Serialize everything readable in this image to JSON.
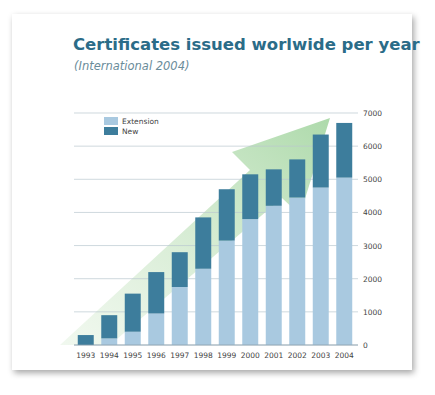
{
  "chart_data": {
    "type": "bar",
    "stacked": true,
    "title": "Certificates issued worlwide per year",
    "subtitle": "(International 2004)",
    "categories": [
      "1993",
      "1994",
      "1995",
      "1996",
      "1997",
      "1998",
      "1999",
      "2000",
      "2001",
      "2002",
      "2003",
      "2004"
    ],
    "series": [
      {
        "name": "Extension",
        "color": "#a9c9e0",
        "values": [
          0,
          200,
          400,
          950,
          1750,
          2300,
          3150,
          3800,
          4200,
          4450,
          4750,
          5050
        ]
      },
      {
        "name": "New",
        "color": "#3d7d9c",
        "values": [
          300,
          700,
          1150,
          1250,
          1050,
          1550,
          1550,
          1350,
          1100,
          1150,
          1600,
          1650
        ]
      }
    ],
    "ylim": [
      0,
      7000
    ],
    "yticks": [
      0,
      1000,
      2000,
      3000,
      4000,
      5000,
      6000,
      7000
    ],
    "grid": true,
    "legend": "upper left"
  }
}
